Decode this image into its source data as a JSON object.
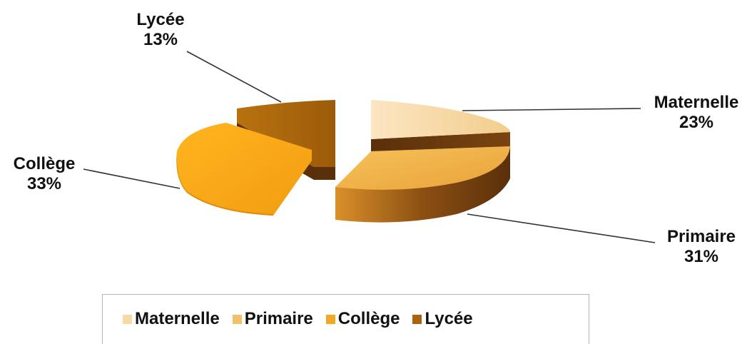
{
  "chart_data": {
    "type": "pie",
    "categories": [
      "Maternelle",
      "Primaire",
      "Collège",
      "Lycée"
    ],
    "values": [
      23,
      31,
      33,
      13
    ],
    "value_labels": [
      "23%",
      "31%",
      "33%",
      "13%"
    ],
    "legend_position": "bottom",
    "exploded": true,
    "three_d": true,
    "colors": [
      "#f7d9a6",
      "#f0b550",
      "#f5a623",
      "#a8650d"
    ]
  },
  "legend": {
    "items": [
      "Maternelle",
      "Primaire",
      "Collège",
      "Lycée"
    ]
  }
}
